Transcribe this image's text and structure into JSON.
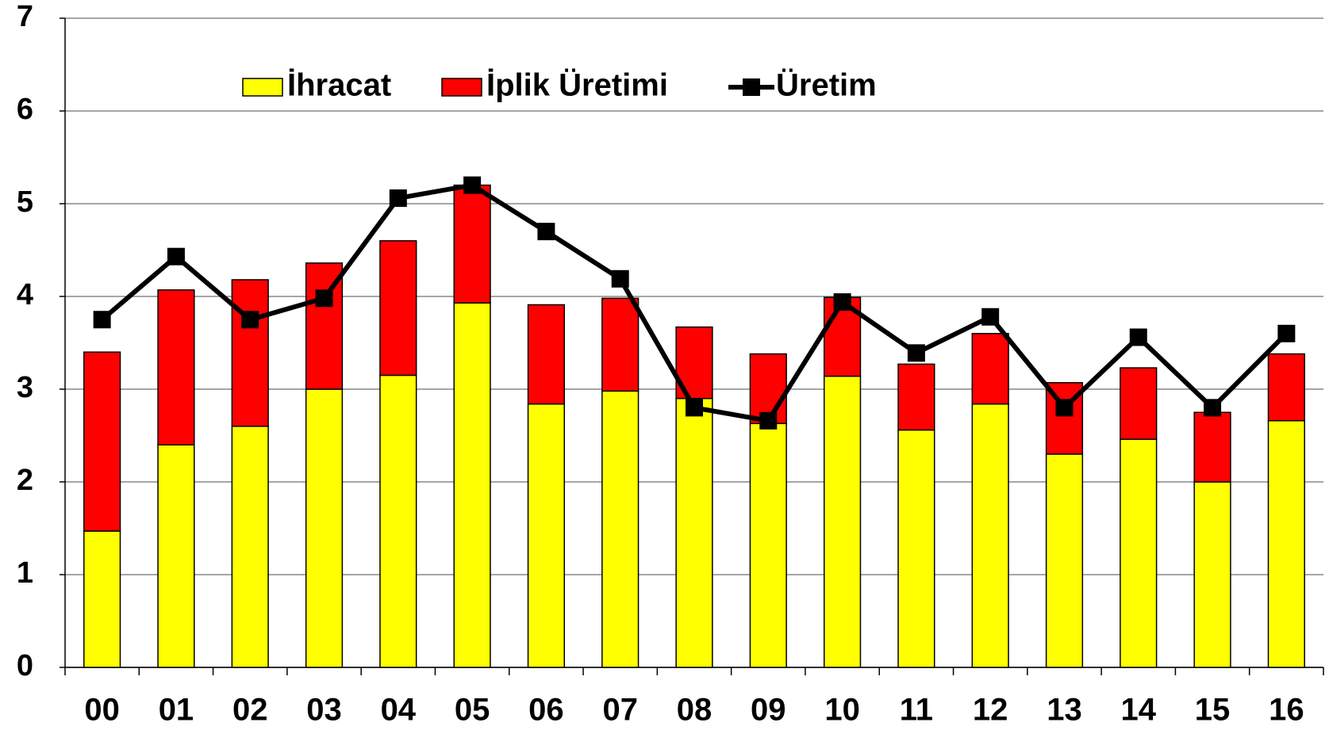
{
  "chart_data": {
    "type": "bar",
    "stacked": true,
    "categories": [
      "00",
      "01",
      "02",
      "03",
      "04",
      "05",
      "06",
      "07",
      "08",
      "09",
      "10",
      "11",
      "12",
      "13",
      "14",
      "15",
      "16"
    ],
    "series": [
      {
        "name": "İhracat",
        "type": "bar",
        "color": "#ffff00",
        "values": [
          1.47,
          2.4,
          2.6,
          3.0,
          3.15,
          3.93,
          2.84,
          2.98,
          2.9,
          2.63,
          3.14,
          2.56,
          2.84,
          2.3,
          2.46,
          2.0,
          2.66
        ]
      },
      {
        "name": "İplik Üretimi",
        "type": "bar",
        "color": "#ff0000",
        "values": [
          1.93,
          1.67,
          1.58,
          1.36,
          1.45,
          1.27,
          1.07,
          1.0,
          0.77,
          0.75,
          0.85,
          0.71,
          0.76,
          0.77,
          0.77,
          0.75,
          0.72
        ]
      },
      {
        "name": "Üretim",
        "type": "line",
        "color": "#000000",
        "values": [
          3.75,
          4.43,
          3.75,
          3.98,
          5.06,
          5.2,
          4.7,
          4.19,
          2.8,
          2.66,
          3.94,
          3.39,
          3.78,
          2.8,
          3.56,
          2.8,
          3.6
        ]
      }
    ],
    "ylim": [
      0,
      7
    ],
    "yticks": [
      0,
      1,
      2,
      3,
      4,
      5,
      6,
      7
    ],
    "grid": true,
    "legend": "top"
  }
}
